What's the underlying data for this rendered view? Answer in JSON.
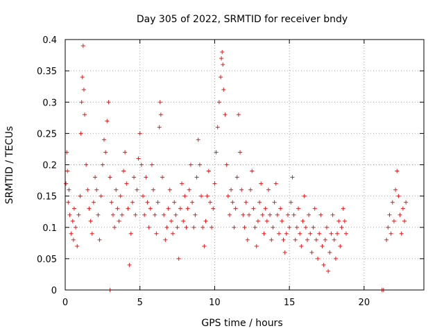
{
  "chart_data": {
    "type": "scatter",
    "title": "Day 305 of 2022, SRMTID for receiver bndy",
    "xlabel": "GPS time / hours",
    "ylabel": "SRMTID / TECUs",
    "xlim": [
      0,
      24
    ],
    "ylim": [
      0,
      0.4
    ],
    "xticks": [
      0,
      5,
      10,
      15,
      20
    ],
    "xtick_labels": [
      "0",
      "5",
      "10",
      "15",
      "20"
    ],
    "yticks": [
      0,
      0.05,
      0.1,
      0.15,
      0.2,
      0.25,
      0.3,
      0.35,
      0.4
    ],
    "ytick_labels": [
      "0",
      "0.05",
      "0.1",
      "0.15",
      "0.2",
      "0.25",
      "0.3",
      "0.35",
      "0.4"
    ],
    "grid": true,
    "marker": "plus",
    "color": "#e41a1c",
    "series": [
      {
        "name": "SRMTID",
        "points": [
          [
            0.05,
            0.17
          ],
          [
            0.1,
            0.22
          ],
          [
            0.15,
            0.19
          ],
          [
            0.2,
            0.14
          ],
          [
            0.25,
            0.16
          ],
          [
            0.3,
            0.12
          ],
          [
            0.4,
            0.09
          ],
          [
            0.5,
            0.11
          ],
          [
            0.55,
            0.08
          ],
          [
            0.6,
            0.13
          ],
          [
            0.7,
            0.1
          ],
          [
            0.8,
            0.07
          ],
          [
            0.9,
            0.12
          ],
          [
            1.0,
            0.15
          ],
          [
            1.05,
            0.25
          ],
          [
            1.1,
            0.3
          ],
          [
            1.15,
            0.34
          ],
          [
            1.2,
            0.39
          ],
          [
            1.25,
            0.32
          ],
          [
            1.3,
            0.28
          ],
          [
            1.4,
            0.2
          ],
          [
            1.5,
            0.16
          ],
          [
            1.6,
            0.13
          ],
          [
            1.7,
            0.11
          ],
          [
            1.8,
            0.09
          ],
          [
            1.9,
            0.14
          ],
          [
            2.0,
            0.18
          ],
          [
            2.1,
            0.16
          ],
          [
            2.2,
            0.12
          ],
          [
            2.3,
            0.08
          ],
          [
            2.4,
            0.15
          ],
          [
            2.5,
            0.2
          ],
          [
            2.6,
            0.24
          ],
          [
            2.7,
            0.22
          ],
          [
            2.8,
            0.27
          ],
          [
            2.9,
            0.3
          ],
          [
            3.0,
            0.18
          ],
          [
            3.1,
            0.14
          ],
          [
            3.2,
            0.12
          ],
          [
            3.3,
            0.1
          ],
          [
            3.4,
            0.16
          ],
          [
            3.5,
            0.13
          ],
          [
            3.6,
            0.11
          ],
          [
            3.7,
            0.15
          ],
          [
            3.8,
            0.12
          ],
          [
            3.9,
            0.19
          ],
          [
            4.0,
            0.22
          ],
          [
            4.1,
            0.17
          ],
          [
            4.2,
            0.13
          ],
          [
            4.3,
            0.04
          ],
          [
            4.4,
            0.09
          ],
          [
            4.5,
            0.14
          ],
          [
            4.6,
            0.18
          ],
          [
            4.7,
            0.12
          ],
          [
            4.8,
            0.16
          ],
          [
            4.9,
            0.21
          ],
          [
            5.0,
            0.25
          ],
          [
            5.1,
            0.2
          ],
          [
            5.2,
            0.15
          ],
          [
            5.3,
            0.12
          ],
          [
            5.4,
            0.18
          ],
          [
            5.5,
            0.14
          ],
          [
            5.6,
            0.1
          ],
          [
            5.7,
            0.13
          ],
          [
            5.8,
            0.2
          ],
          [
            5.9,
            0.16
          ],
          [
            6.0,
            0.12
          ],
          [
            6.1,
            0.09
          ],
          [
            6.2,
            0.14
          ],
          [
            6.3,
            0.26
          ],
          [
            6.35,
            0.3
          ],
          [
            6.4,
            0.28
          ],
          [
            6.5,
            0.18
          ],
          [
            6.6,
            0.12
          ],
          [
            6.7,
            0.08
          ],
          [
            6.8,
            0.1
          ],
          [
            6.9,
            0.13
          ],
          [
            7.0,
            0.16
          ],
          [
            7.1,
            0.11
          ],
          [
            7.2,
            0.09
          ],
          [
            7.3,
            0.14
          ],
          [
            7.4,
            0.12
          ],
          [
            7.5,
            0.1
          ],
          [
            7.6,
            0.05
          ],
          [
            7.7,
            0.13
          ],
          [
            7.8,
            0.17
          ],
          [
            7.9,
            0.11
          ],
          [
            8.0,
            0.15
          ],
          [
            8.1,
            0.1
          ],
          [
            8.2,
            0.13
          ],
          [
            8.3,
            0.16
          ],
          [
            8.4,
            0.2
          ],
          [
            8.5,
            0.14
          ],
          [
            8.6,
            0.1
          ],
          [
            8.7,
            0.12
          ],
          [
            8.8,
            0.18
          ],
          [
            8.9,
            0.24
          ],
          [
            9.0,
            0.2
          ],
          [
            9.1,
            0.15
          ],
          [
            9.2,
            0.1
          ],
          [
            9.3,
            0.07
          ],
          [
            9.4,
            0.11
          ],
          [
            9.5,
            0.15
          ],
          [
            9.6,
            0.19
          ],
          [
            9.7,
            0.14
          ],
          [
            9.8,
            0.1
          ],
          [
            9.9,
            0.13
          ],
          [
            10.0,
            0.17
          ],
          [
            10.1,
            0.22
          ],
          [
            10.2,
            0.26
          ],
          [
            10.3,
            0.3
          ],
          [
            10.4,
            0.34
          ],
          [
            10.45,
            0.37
          ],
          [
            10.5,
            0.38
          ],
          [
            10.55,
            0.36
          ],
          [
            10.6,
            0.32
          ],
          [
            10.7,
            0.28
          ],
          [
            10.8,
            0.2
          ],
          [
            10.9,
            0.15
          ],
          [
            11.0,
            0.12
          ],
          [
            11.1,
            0.16
          ],
          [
            11.2,
            0.14
          ],
          [
            11.3,
            0.1
          ],
          [
            11.4,
            0.13
          ],
          [
            11.5,
            0.18
          ],
          [
            11.6,
            0.28
          ],
          [
            11.7,
            0.22
          ],
          [
            11.8,
            0.16
          ],
          [
            11.9,
            0.12
          ],
          [
            12.0,
            0.1
          ],
          [
            12.1,
            0.14
          ],
          [
            12.2,
            0.08
          ],
          [
            12.3,
            0.12
          ],
          [
            12.4,
            0.16
          ],
          [
            12.5,
            0.19
          ],
          [
            12.6,
            0.13
          ],
          [
            12.7,
            0.1
          ],
          [
            12.8,
            0.07
          ],
          [
            12.9,
            0.11
          ],
          [
            13.0,
            0.14
          ],
          [
            13.1,
            0.17
          ],
          [
            13.2,
            0.12
          ],
          [
            13.3,
            0.09
          ],
          [
            13.4,
            0.13
          ],
          [
            13.5,
            0.11
          ],
          [
            13.6,
            0.16
          ],
          [
            13.7,
            0.12
          ],
          [
            13.8,
            0.08
          ],
          [
            13.9,
            0.1
          ],
          [
            14.0,
            0.14
          ],
          [
            14.1,
            0.17
          ],
          [
            14.2,
            0.12
          ],
          [
            14.3,
            0.09
          ],
          [
            14.4,
            0.13
          ],
          [
            14.5,
            0.11
          ],
          [
            14.6,
            0.08
          ],
          [
            14.7,
            0.06
          ],
          [
            14.8,
            0.09
          ],
          [
            14.9,
            0.12
          ],
          [
            15.0,
            0.1
          ],
          [
            15.1,
            0.14
          ],
          [
            15.2,
            0.18
          ],
          [
            15.3,
            0.12
          ],
          [
            15.4,
            0.08
          ],
          [
            15.5,
            0.1
          ],
          [
            15.6,
            0.13
          ],
          [
            15.7,
            0.09
          ],
          [
            15.8,
            0.07
          ],
          [
            15.9,
            0.11
          ],
          [
            16.0,
            0.15
          ],
          [
            16.1,
            0.1
          ],
          [
            16.2,
            0.08
          ],
          [
            16.3,
            0.12
          ],
          [
            16.4,
            0.09
          ],
          [
            16.5,
            0.06
          ],
          [
            16.6,
            0.1
          ],
          [
            16.7,
            0.13
          ],
          [
            16.8,
            0.08
          ],
          [
            16.9,
            0.05
          ],
          [
            17.0,
            0.09
          ],
          [
            17.1,
            0.12
          ],
          [
            17.2,
            0.07
          ],
          [
            17.3,
            0.04
          ],
          [
            17.4,
            0.08
          ],
          [
            17.5,
            0.1
          ],
          [
            17.6,
            0.03
          ],
          [
            17.7,
            0.06
          ],
          [
            17.8,
            0.09
          ],
          [
            17.9,
            0.12
          ],
          [
            18.0,
            0.08
          ],
          [
            18.1,
            0.05
          ],
          [
            18.2,
            0.09
          ],
          [
            18.3,
            0.11
          ],
          [
            18.4,
            0.07
          ],
          [
            18.5,
            0.1
          ],
          [
            18.6,
            0.13
          ],
          [
            18.7,
            0.11
          ],
          [
            18.8,
            0.09
          ],
          [
            3.0,
            0.0
          ],
          [
            21.2,
            0.0
          ],
          [
            21.3,
            0.0
          ],
          [
            21.5,
            0.08
          ],
          [
            21.6,
            0.1
          ],
          [
            21.7,
            0.12
          ],
          [
            21.8,
            0.09
          ],
          [
            21.9,
            0.14
          ],
          [
            22.0,
            0.11
          ],
          [
            22.1,
            0.16
          ],
          [
            22.2,
            0.19
          ],
          [
            22.3,
            0.15
          ],
          [
            22.4,
            0.12
          ],
          [
            22.5,
            0.09
          ],
          [
            22.6,
            0.13
          ],
          [
            22.7,
            0.11
          ],
          [
            22.8,
            0.14
          ]
        ]
      }
    ]
  }
}
